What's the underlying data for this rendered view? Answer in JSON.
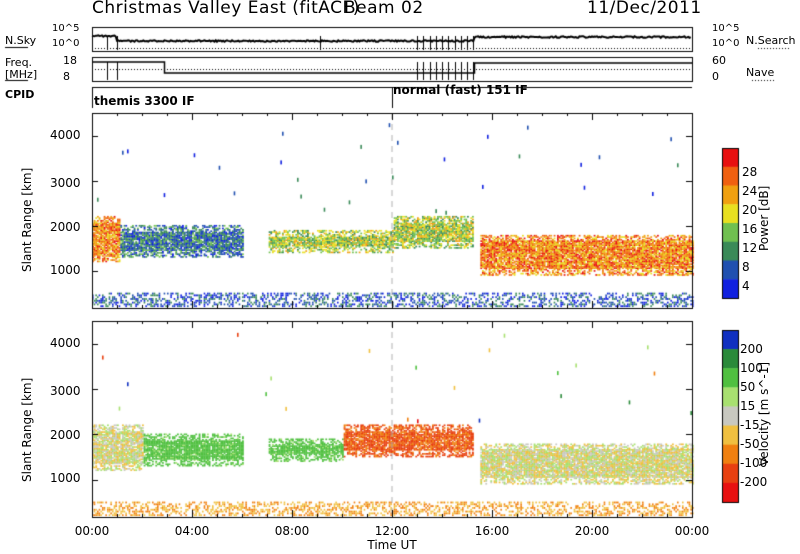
{
  "header": {
    "title": "Christmas Valley East (fitACF)",
    "beam": "Beam 02",
    "date": "11/Dec/2011"
  },
  "top_panels": {
    "nsky_label": "N.Sky",
    "nsky_ticks": [
      "10^5",
      "10^0"
    ],
    "nsearch_label": "N.Search",
    "nsearch_ticks": [
      "10^5",
      "10^0"
    ],
    "freq_label": "Freq.",
    "freq_unit": "[MHz]",
    "freq_ticks": [
      "18",
      "8"
    ],
    "nave_label": "Nave",
    "nave_ticks": [
      "60",
      "0"
    ],
    "cpid_label": "CPID",
    "modes": [
      "themis 3300 IF",
      "normal (fast) 151 IF"
    ]
  },
  "chart_data": [
    {
      "type": "heatmap",
      "title": "Power",
      "ylabel": "Slant Range [km]",
      "xlabel": "",
      "xlim": [
        0,
        24
      ],
      "ylim": [
        180,
        4500
      ],
      "y_ticks": [
        "1000",
        "2000",
        "3000",
        "4000"
      ],
      "colorbar": {
        "label": "Power [dB]",
        "ticks": [
          "4",
          "8",
          "12",
          "16",
          "20",
          "24",
          "28"
        ],
        "colors": [
          "#1020e0",
          "#2050b0",
          "#3a8a58",
          "#70c050",
          "#e8e020",
          "#f0a010",
          "#f06010",
          "#e81010"
        ]
      },
      "regions": [
        {
          "t": [
            0.0,
            1.1
          ],
          "range": [
            1200,
            2200
          ],
          "level": "high"
        },
        {
          "t": [
            1.1,
            6.0
          ],
          "range": [
            1300,
            2000
          ],
          "level": "low"
        },
        {
          "t": [
            7.0,
            12.0
          ],
          "range": [
            1400,
            1900
          ],
          "level": "medium"
        },
        {
          "t": [
            12.0,
            15.2
          ],
          "range": [
            1500,
            2200
          ],
          "level": "medium"
        },
        {
          "t": [
            15.5,
            24.0
          ],
          "range": [
            900,
            1800
          ],
          "level": "high"
        }
      ]
    },
    {
      "type": "heatmap",
      "title": "Velocity",
      "ylabel": "Slant Range [km]",
      "xlabel": "Time UT",
      "xlim": [
        0,
        24
      ],
      "ylim": [
        180,
        4500
      ],
      "y_ticks": [
        "1000",
        "2000",
        "3000",
        "4000"
      ],
      "x_ticks": [
        "00:00",
        "04:00",
        "08:00",
        "12:00",
        "16:00",
        "20:00",
        "00:00"
      ],
      "colorbar": {
        "label": "Velocity [m s^-1]",
        "ticks": [
          "200",
          "100",
          "50",
          "15",
          "-15",
          "-50",
          "-100",
          "-200"
        ],
        "colors": [
          "#1030c0",
          "#2a8a3a",
          "#50c040",
          "#a8e070",
          "#c8c8c0",
          "#f0c040",
          "#f08010",
          "#e84010",
          "#e81010"
        ]
      },
      "regions": [
        {
          "t": [
            0.0,
            2.0
          ],
          "range": [
            1200,
            2200
          ],
          "velocity": 0
        },
        {
          "t": [
            2.0,
            6.0
          ],
          "range": [
            1300,
            2000
          ],
          "velocity": 50
        },
        {
          "t": [
            7.0,
            10.0
          ],
          "range": [
            1400,
            1900
          ],
          "velocity": 50
        },
        {
          "t": [
            10.0,
            15.2
          ],
          "range": [
            1500,
            2200
          ],
          "velocity": -80
        },
        {
          "t": [
            15.5,
            24.0
          ],
          "range": [
            900,
            1800
          ],
          "velocity": 0
        }
      ]
    }
  ],
  "colors": {
    "axis": "#000000",
    "dashed_marker": "#b0b0b0"
  }
}
